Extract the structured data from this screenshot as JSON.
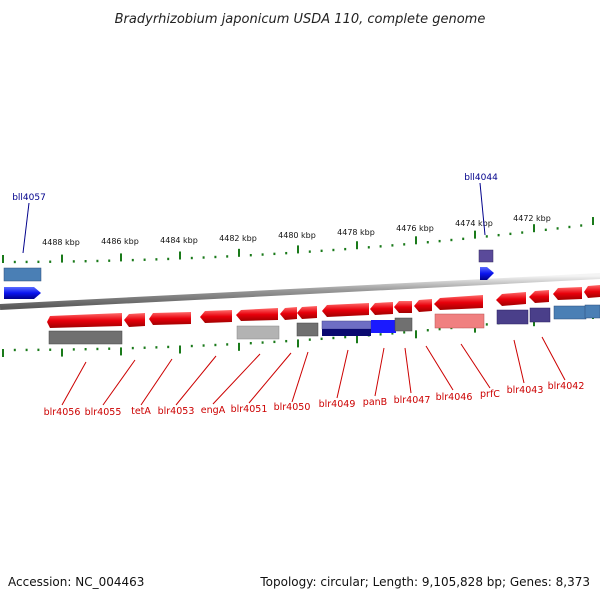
{
  "title": "Bradyrhizobium japonicum USDA 110, complete genome",
  "footer": {
    "accession": "Accession: NC_004463",
    "stats": "Topology: circular; Length: 9,105,828 bp; Genes: 8,373"
  },
  "scale_labels": [
    "4488 kbp",
    "4486 kbp",
    "4484 kbp",
    "4482 kbp",
    "4480 kbp",
    "4478 kbp",
    "4476 kbp",
    "4474 kbp",
    "4472 kbp"
  ],
  "top_gene_labels": [
    "bll4057",
    "bll4044"
  ],
  "bottom_gene_labels": [
    "blr4056",
    "blr4055",
    "tetA",
    "blr4053",
    "engA",
    "blr4051",
    "blr4050",
    "blr4049",
    "panB",
    "blr4047",
    "blr4046",
    "prfC",
    "blr4043",
    "blr4042"
  ],
  "colors": {
    "forward_gene": "#e8000b",
    "reverse_gene": "#0a14f0",
    "backbone": "#8c8c8c",
    "tick": "#1a7a1a",
    "top_label": "#00008b",
    "bottom_label": "#cc0000"
  }
}
